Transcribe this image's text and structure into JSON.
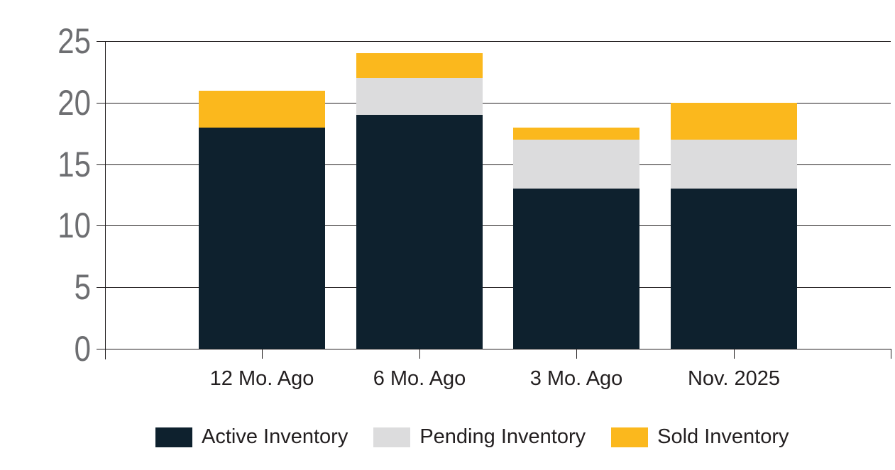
{
  "chart_data": {
    "type": "bar",
    "stacked": true,
    "title": "",
    "categories": [
      "12 Mo. Ago",
      "6 Mo. Ago",
      "3 Mo. Ago",
      "Nov. 2025"
    ],
    "series": [
      {
        "name": "Active Inventory",
        "color": "#0e212e",
        "values": [
          18,
          19,
          13,
          13
        ]
      },
      {
        "name": "Pending Inventory",
        "color": "#dcdcdd",
        "values": [
          0,
          3,
          4,
          4
        ]
      },
      {
        "name": "Sold Inventory",
        "color": "#fbb81d",
        "values": [
          3,
          2,
          1,
          3
        ]
      }
    ],
    "ylim": [
      0,
      25
    ],
    "yticks": [
      0,
      5,
      10,
      15,
      20,
      25
    ],
    "grid": "horizontal",
    "legend_position": "bottom"
  },
  "style": {
    "background": "#ffffff",
    "grid_line_color": "#231f20",
    "y_label_color": "#6d6e71",
    "x_label_color": "#231f20",
    "legend_text_color": "#231f20"
  }
}
